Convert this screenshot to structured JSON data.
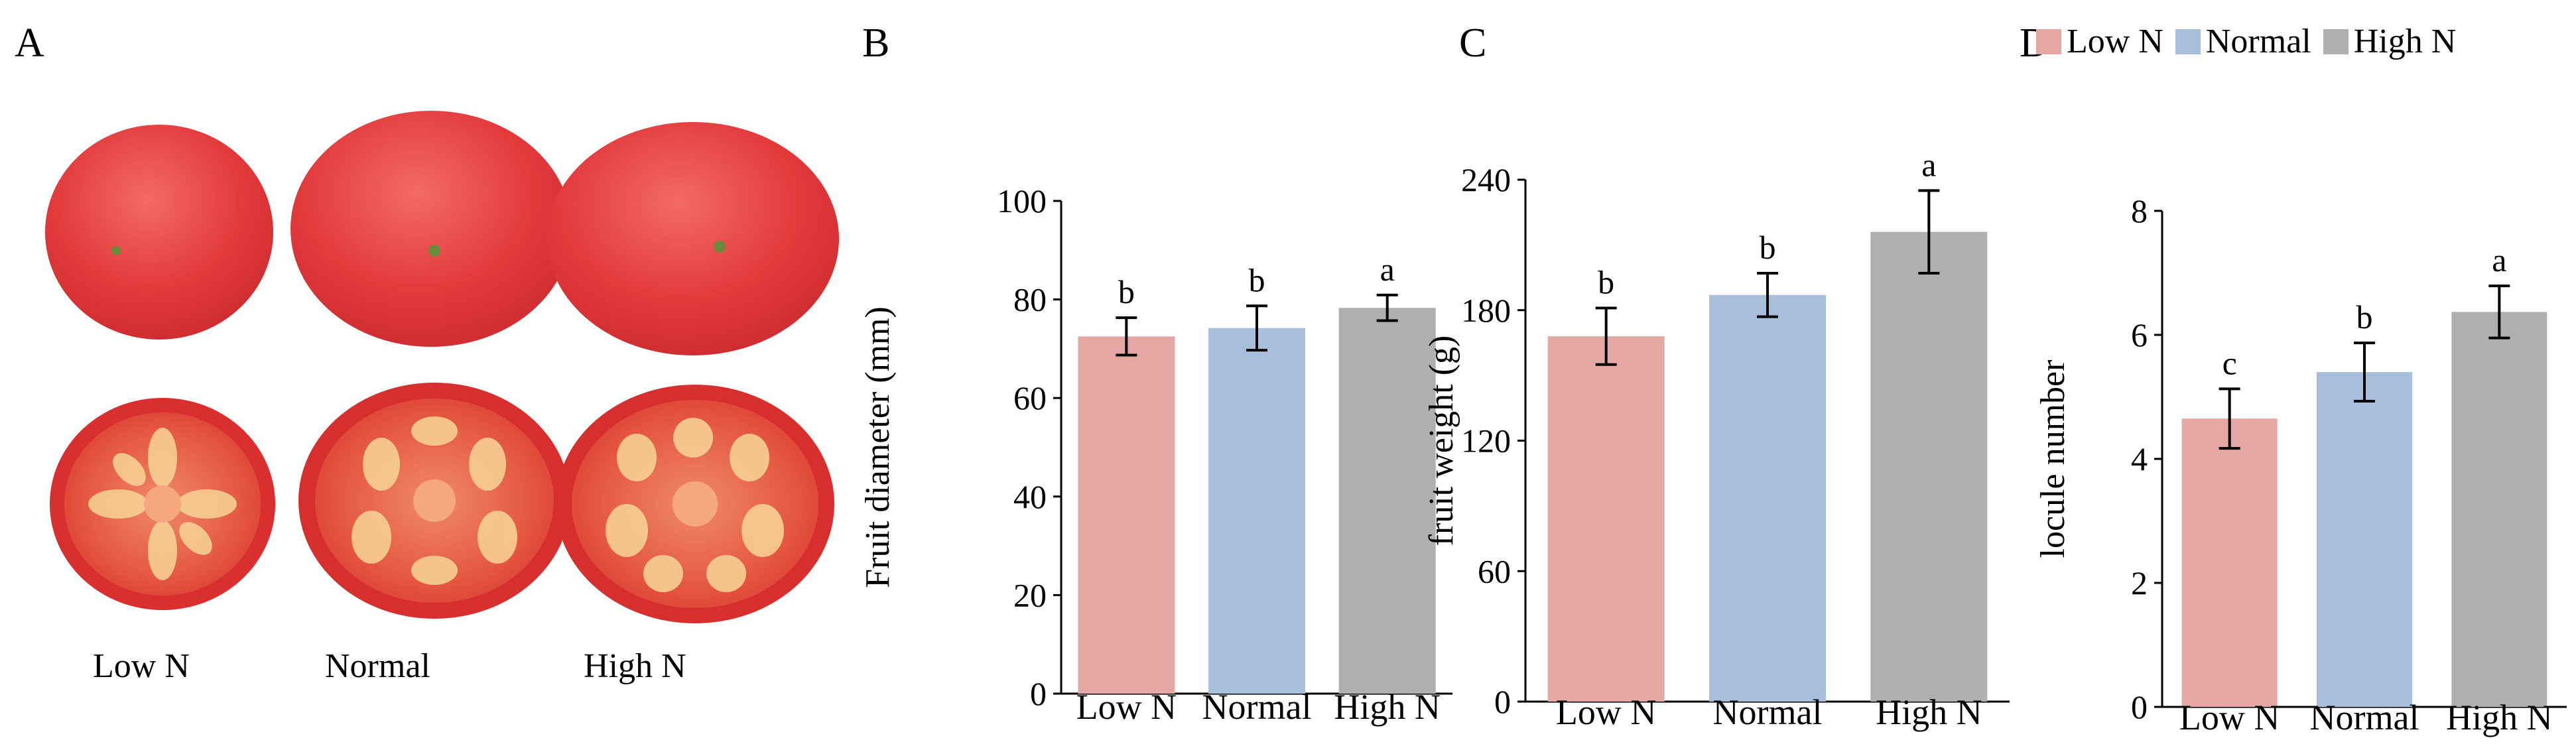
{
  "panels": {
    "a": {
      "letter": "A",
      "labels": [
        "Low N",
        "Normal",
        "High N"
      ]
    },
    "b": {
      "letter": "B"
    },
    "c": {
      "letter": "C"
    },
    "d": {
      "letter": "D"
    }
  },
  "legend": [
    {
      "label": "Low N",
      "color": "#E4A7A4"
    },
    {
      "label": "Normal",
      "color": "#A7BFDD"
    },
    {
      "label": "High N",
      "color": "#AEB0AE"
    }
  ],
  "colors": {
    "low": "#E4A7A4",
    "normal": "#A7BFDD",
    "high": "#AEB0AE",
    "tomato_skin": "#e53c3d",
    "tomato_flesh": "#e4553f"
  },
  "chart_data": [
    {
      "type": "bar",
      "panel": "B",
      "title": "",
      "categories": [
        "Low N",
        "Normal",
        "High N"
      ],
      "values": [
        72.5,
        74.2,
        78.3
      ],
      "errors": [
        3.8,
        4.5,
        2.6
      ],
      "significance": [
        "b",
        "b",
        "a"
      ],
      "xlabel": "",
      "ylabel": "Fruit diameter (mm)",
      "ylim": [
        0,
        100
      ],
      "yticks": [
        0,
        20,
        40,
        60,
        80,
        100
      ],
      "grid": false
    },
    {
      "type": "bar",
      "panel": "C",
      "title": "",
      "categories": [
        "Low N",
        "Normal",
        "High N"
      ],
      "values": [
        168,
        187,
        216
      ],
      "errors": [
        13,
        10,
        19
      ],
      "significance": [
        "b",
        "b",
        "a"
      ],
      "xlabel": "",
      "ylabel": "fruit weight (g)",
      "ylim": [
        0,
        240
      ],
      "yticks": [
        0,
        60,
        120,
        180,
        240
      ],
      "grid": false
    },
    {
      "type": "bar",
      "panel": "D",
      "title": "",
      "categories": [
        "Low N",
        "Normal",
        "High N"
      ],
      "values": [
        4.65,
        5.4,
        6.37
      ],
      "errors": [
        0.48,
        0.47,
        0.42
      ],
      "significance": [
        "c",
        "b",
        "a"
      ],
      "xlabel": "",
      "ylabel": "locule number",
      "ylim": [
        0,
        8
      ],
      "yticks": [
        0,
        2,
        4,
        6,
        8
      ],
      "grid": false
    }
  ]
}
